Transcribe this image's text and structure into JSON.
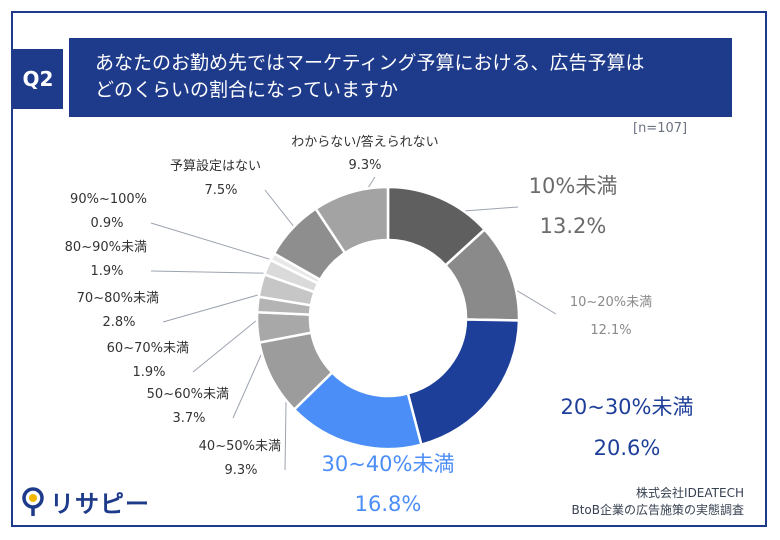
{
  "header": {
    "q_label": "Q2",
    "title_line1": "あなたのお勤め先ではマーケティング予算における、広告予算は",
    "title_line2": "どのくらいの割合になっていますか"
  },
  "sample_size": "[n=107]",
  "footer": {
    "logo_text": "リサピー",
    "source_line1": "株式会社IDEATECH",
    "source_line2": "BtoB企業の広告施策の実態調査"
  },
  "chart_data": {
    "type": "pie",
    "donut": true,
    "title": "",
    "slices": [
      {
        "label": "10%未満",
        "value": 13.2,
        "value_label": "13.2%",
        "color": "#5f5f5f",
        "label_color": "#6b6b6b"
      },
      {
        "label": "10~20%未満",
        "value": 12.1,
        "value_label": "12.1%",
        "color": "#8a8a8a",
        "label_color": "#8a8a8a"
      },
      {
        "label": "20~30%未満",
        "value": 20.6,
        "value_label": "20.6%",
        "color": "#1e3f99",
        "label_color": "#1e3f99"
      },
      {
        "label": "30~40%未満",
        "value": 16.8,
        "value_label": "16.8%",
        "color": "#4c8ef7",
        "label_color": "#4c8ef7"
      },
      {
        "label": "40~50%未満",
        "value": 9.3,
        "value_label": "9.3%",
        "color": "#9c9c9c",
        "label_color": "#333333"
      },
      {
        "label": "50~60%未満",
        "value": 3.7,
        "value_label": "3.7%",
        "color": "#a8a8a8",
        "label_color": "#333333"
      },
      {
        "label": "60~70%未満",
        "value": 1.9,
        "value_label": "1.9%",
        "color": "#b4b4b4",
        "label_color": "#333333"
      },
      {
        "label": "70~80%未満",
        "value": 2.8,
        "value_label": "2.8%",
        "color": "#c6c6c6",
        "label_color": "#333333"
      },
      {
        "label": "80~90%未満",
        "value": 1.9,
        "value_label": "1.9%",
        "color": "#dadada",
        "label_color": "#333333"
      },
      {
        "label": "90%~100%",
        "value": 0.9,
        "value_label": "0.9%",
        "color": "#e8e8e8",
        "label_color": "#333333"
      },
      {
        "label": "予算設定はない",
        "value": 7.5,
        "value_label": "7.5%",
        "color": "#8e8e8e",
        "label_color": "#333333"
      },
      {
        "label": "わからない/答えられない",
        "value": 9.3,
        "value_label": "9.3%",
        "color": "#a3a3a3",
        "label_color": "#333333"
      }
    ]
  }
}
